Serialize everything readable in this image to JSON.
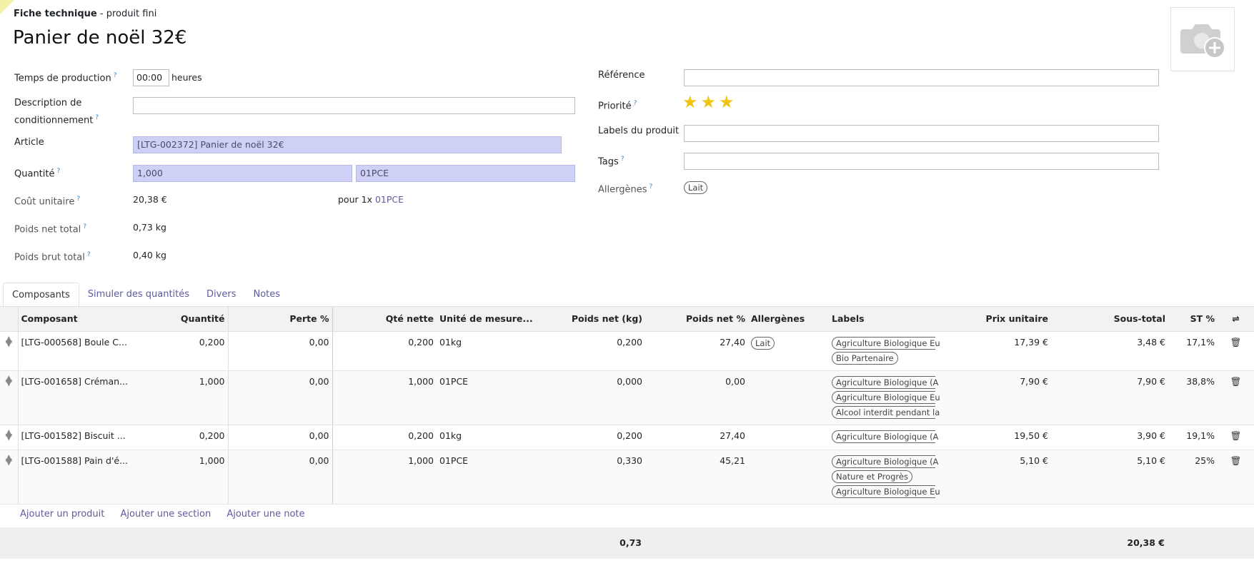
{
  "header": {
    "kind_bold": "Fiche technique",
    "kind_rest": " - produit fini",
    "title": "Panier de noël 32€"
  },
  "form_left": {
    "production_time_label": "Temps de production",
    "production_time_value": "00:00",
    "production_time_unit": "heures",
    "packaging_label_l1": "Description de",
    "packaging_label_l2": "conditionnement",
    "packaging_value": "",
    "article_label": "Article",
    "article_value": "[LTG-002372] Panier de noël 32€",
    "quantity_label": "Quantité",
    "quantity_value": "1,000",
    "quantity_uom": "01PCE",
    "unit_cost_label": "Coût unitaire",
    "unit_cost_value": "20,38 €",
    "per_text": "pour 1x",
    "per_uom": "01PCE",
    "net_weight_label": "Poids net total",
    "net_weight_value": "0,73 kg",
    "gross_weight_label": "Poids brut total",
    "gross_weight_value": "0,40 kg"
  },
  "form_right": {
    "reference_label": "Référence",
    "reference_value": "",
    "priority_label": "Priorité",
    "priority_stars": 3,
    "product_labels_label": "Labels du produit",
    "product_labels_value": "",
    "tags_label": "Tags",
    "tags_value": "",
    "allergens_label": "Allergènes",
    "allergens": [
      "Lait"
    ]
  },
  "tabs": [
    "Composants",
    "Simuler des quantités",
    "Divers",
    "Notes"
  ],
  "table": {
    "columns": [
      "Composant",
      "Quantité",
      "Perte %",
      "Qté nette",
      "Unité de mesure...",
      "Poids net (kg)",
      "Poids net %",
      "Allergènes",
      "Labels",
      "Prix unitaire",
      "Sous-total",
      "ST %"
    ],
    "rows": [
      {
        "component": "[LTG-000568] Boule C...",
        "qty": "0,200",
        "loss": "0,00",
        "net_qty": "0,200",
        "uom": "01kg",
        "net_weight": "0,200",
        "net_weight_pct": "27,40",
        "allergens": [
          "Lait"
        ],
        "labels": [
          "Agriculture Biologique Eu",
          "Bio Partenaire"
        ],
        "unit_price": "17,39 €",
        "subtotal": "3,48 €",
        "st_pct": "17,1%"
      },
      {
        "component": "[LTG-001658] Créman...",
        "qty": "1,000",
        "loss": "0,00",
        "net_qty": "1,000",
        "uom": "01PCE",
        "net_weight": "0,000",
        "net_weight_pct": "0,00",
        "allergens": [],
        "labels": [
          "Agriculture Biologique (A",
          "Agriculture Biologique Eu",
          "Alcool interdit pendant la"
        ],
        "unit_price": "7,90 €",
        "subtotal": "7,90 €",
        "st_pct": "38,8%"
      },
      {
        "component": "[LTG-001582] Biscuit ...",
        "qty": "0,200",
        "loss": "0,00",
        "net_qty": "0,200",
        "uom": "01kg",
        "net_weight": "0,200",
        "net_weight_pct": "27,40",
        "allergens": [],
        "labels": [
          "Agriculture Biologique (A"
        ],
        "unit_price": "19,50 €",
        "subtotal": "3,90 €",
        "st_pct": "19,1%"
      },
      {
        "component": "[LTG-001588] Pain d'é...",
        "qty": "1,000",
        "loss": "0,00",
        "net_qty": "1,000",
        "uom": "01PCE",
        "net_weight": "0,330",
        "net_weight_pct": "45,21",
        "allergens": [],
        "labels": [
          "Agriculture Biologique (A",
          "Nature et Progrès",
          "Agriculture Biologique Eu"
        ],
        "unit_price": "5,10 €",
        "subtotal": "5,10 €",
        "st_pct": "25%"
      }
    ]
  },
  "add_links": [
    "Ajouter un produit",
    "Ajouter une section",
    "Ajouter une note"
  ],
  "totals": {
    "net_weight": "0,73",
    "subtotal": "20,38 €"
  },
  "colors": {
    "accent_link": "#5e5b9c",
    "readonly_bg": "#cfd0f5",
    "star": "#f1c40f",
    "help": "#3f7fb5"
  }
}
